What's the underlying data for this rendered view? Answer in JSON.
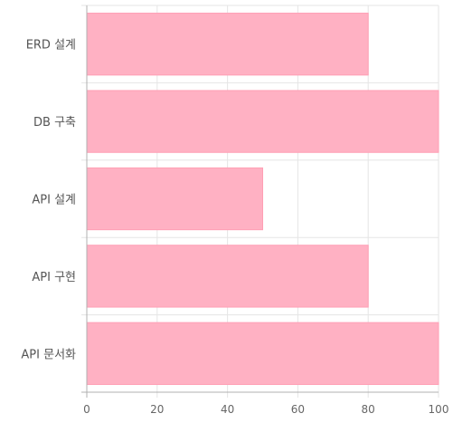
{
  "chart_data": {
    "type": "bar",
    "orientation": "horizontal",
    "categories": [
      "ERD 설계",
      "DB 구축",
      "API 설계",
      "API 구현",
      "API 문서화"
    ],
    "values": [
      80,
      100,
      50,
      80,
      100
    ],
    "xlim": [
      0,
      100
    ],
    "x_ticks": [
      0,
      20,
      40,
      60,
      80,
      100
    ],
    "title": "",
    "xlabel": "",
    "ylabel": "",
    "grid": true,
    "bar_color": "#ffb1c3",
    "bar_border_color": "#ff9fb5",
    "grid_color": "#e5e5e5",
    "axis_color": "#b0b0b0",
    "legend": "none"
  }
}
